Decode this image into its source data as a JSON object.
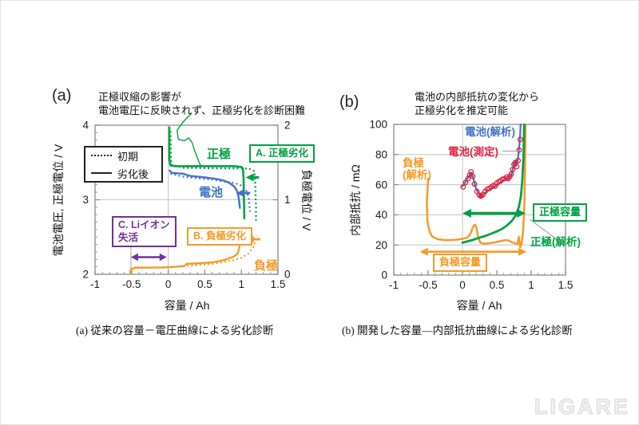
{
  "watermark": "LIGARE",
  "captions": {
    "a": "(a) 従来の容量－電圧曲線による劣化診断",
    "b": "(b) 開発した容量―内部抵抗曲線による劣化診断"
  },
  "colors": {
    "green": "#00a142",
    "blue": "#4472c4",
    "orange": "#f59a28",
    "purple": "#7030a0",
    "red": "#e0233c",
    "grid": "#c8c8c8",
    "frame": "#8c8c8c",
    "leader_gray": "#aaaaaa"
  },
  "chart_data": [
    {
      "id": "a",
      "type": "line",
      "corner_label": "(a)",
      "title_lines": [
        "正極収縮の影響が",
        "電池電圧に反映されず、正極劣化を診断困難"
      ],
      "xlabel": "容量 / Ah",
      "ylabel_left": "電池電圧, 正極電位 / V",
      "ylabel_right": "負極電位 / V",
      "xlim": [
        -1,
        1.5
      ],
      "ylim": [
        2,
        4
      ],
      "ylim_right": [
        0,
        2
      ],
      "xticks": [
        -1,
        -0.5,
        0,
        0.5,
        1,
        1.5
      ],
      "yticks": [
        2,
        3,
        4
      ],
      "yticks_right": [
        0,
        1,
        2
      ],
      "grid": {
        "x": [
          0
        ],
        "y": [
          3
        ]
      },
      "legend": [
        {
          "style": "dotted",
          "label": "初期"
        },
        {
          "style": "solid",
          "label": "劣化後"
        }
      ],
      "curve_labels": {
        "positive": "正極",
        "battery": "電池",
        "negative": "負極"
      },
      "boxes": {
        "a_label": "A. 正極劣化",
        "b_label": "B. 負極劣化",
        "c_line1": "C. Liイオン",
        "c_line2": "失活"
      },
      "series": [
        {
          "name": "正極(劣化後)",
          "color": "#00a142",
          "width": 2.6,
          "dash": "",
          "points": [
            [
              0.015,
              3.97
            ],
            [
              0.015,
              3.55
            ],
            [
              0.03,
              3.46
            ],
            [
              0.1,
              3.45
            ],
            [
              0.5,
              3.45
            ],
            [
              0.9,
              3.45
            ],
            [
              1.0,
              3.44
            ],
            [
              1.02,
              3.42
            ],
            [
              1.03,
              3.3
            ],
            [
              1.035,
              3.0
            ],
            [
              1.04,
              2.75
            ]
          ]
        },
        {
          "name": "正極(初期)",
          "color": "#00a142",
          "width": 2.3,
          "dash": "2 3.2",
          "points": [
            [
              0.03,
              3.92
            ],
            [
              0.04,
              3.47
            ],
            [
              0.2,
              3.43
            ],
            [
              0.7,
              3.42
            ],
            [
              1.05,
              3.42
            ],
            [
              1.14,
              3.41
            ],
            [
              1.18,
              3.38
            ],
            [
              1.19,
              3.2
            ],
            [
              1.2,
              2.9
            ],
            [
              1.2,
              2.72
            ]
          ]
        },
        {
          "name": "電池(劣化後)",
          "color": "#4472c4",
          "width": 2.4,
          "dash": "",
          "points": [
            [
              0.02,
              3.39
            ],
            [
              0.05,
              3.36
            ],
            [
              0.2,
              3.35
            ],
            [
              0.3,
              3.32
            ],
            [
              0.5,
              3.3
            ],
            [
              0.65,
              3.28
            ],
            [
              0.75,
              3.26
            ],
            [
              0.83,
              3.23
            ],
            [
              0.9,
              3.18
            ],
            [
              0.94,
              3.12
            ],
            [
              0.96,
              3.05
            ],
            [
              0.97,
              2.97
            ],
            [
              0.98,
              2.89
            ]
          ]
        },
        {
          "name": "電池(初期)",
          "color": "#4472c4",
          "width": 2.2,
          "dash": "2 3.2",
          "points": [
            [
              0.03,
              3.35
            ],
            [
              0.2,
              3.31
            ],
            [
              0.4,
              3.29
            ],
            [
              0.6,
              3.27
            ],
            [
              0.8,
              3.24
            ],
            [
              0.92,
              3.22
            ],
            [
              1.0,
              3.19
            ],
            [
              1.05,
              3.15
            ],
            [
              1.08,
              3.1
            ],
            [
              1.1,
              3.02
            ],
            [
              1.11,
              2.92
            ],
            [
              1.12,
              2.84
            ]
          ]
        },
        {
          "name": "負極(劣化後)",
          "color": "#f59a28",
          "width": 2.4,
          "dash": "",
          "points": [
            [
              -0.52,
              2.02
            ],
            [
              -0.51,
              2.07
            ],
            [
              -0.45,
              2.09
            ],
            [
              -0.1,
              2.09
            ],
            [
              0.1,
              2.1
            ],
            [
              0.22,
              2.11
            ],
            [
              0.25,
              2.14
            ],
            [
              0.45,
              2.15
            ],
            [
              0.6,
              2.16
            ],
            [
              0.72,
              2.18
            ],
            [
              0.82,
              2.21
            ],
            [
              0.9,
              2.24
            ],
            [
              0.95,
              2.28
            ],
            [
              0.97,
              2.35
            ],
            [
              0.985,
              2.45
            ],
            [
              0.99,
              2.52
            ]
          ]
        },
        {
          "name": "負極(初期)",
          "color": "#f59a28",
          "width": 2.2,
          "dash": "2 3.2",
          "points": [
            [
              -0.5,
              2.03
            ],
            [
              -0.48,
              2.08
            ],
            [
              -0.2,
              2.09
            ],
            [
              0.1,
              2.1
            ],
            [
              0.35,
              2.12
            ],
            [
              0.6,
              2.14
            ],
            [
              0.85,
              2.18
            ],
            [
              1.0,
              2.22
            ],
            [
              1.1,
              2.28
            ],
            [
              1.16,
              2.36
            ],
            [
              1.2,
              2.46
            ],
            [
              1.21,
              2.52
            ]
          ]
        }
      ],
      "leaders": [
        {
          "color": "#00a142",
          "width": 1.4,
          "clip": false,
          "points": [
            [
              0.32,
              4.16
            ],
            [
              0.2,
              4.04
            ],
            [
              0.12,
              3.93
            ],
            [
              0.14,
              3.81
            ],
            [
              0.22,
              3.79
            ],
            [
              0.28,
              3.83
            ],
            [
              0.33,
              3.76
            ],
            [
              0.36,
              3.66
            ],
            [
              0.41,
              3.53
            ],
            [
              0.45,
              3.44
            ]
          ]
        }
      ],
      "vlines": [
        {
          "x": -0.51,
          "y1": 2.0,
          "y2": 2.39,
          "color": "#b3b3b3",
          "width": 1.2
        }
      ],
      "arrows": [
        {
          "x1": -0.51,
          "x2": -0.02,
          "y": 2.23,
          "color": "#7030a0",
          "width": 2.4,
          "heads": "both",
          "hl": 9,
          "hw": 4.8
        },
        {
          "x1": 1.06,
          "x2": 1.24,
          "y": 3.3,
          "color": "#00a142",
          "width": 3.2,
          "heads": "start",
          "hl": 10,
          "hw": 5
        },
        {
          "x1": 0.93,
          "x2": 1.12,
          "y": 3.09,
          "color": "#4472c4",
          "width": 2.8,
          "heads": "start",
          "hl": 9,
          "hw": 4.5
        },
        {
          "x1": 1.07,
          "x2": 1.26,
          "y": 2.47,
          "color": "#f59a28",
          "width": 2.8,
          "heads": "start",
          "hl": 9,
          "hw": 4.5
        }
      ]
    },
    {
      "id": "b",
      "type": "line",
      "corner_label": "(b)",
      "title_lines": [
        "電池の内部抵抗の変化から",
        "正極劣化を推定可能"
      ],
      "xlabel": "容量 / Ah",
      "ylabel_left": "内部抵抗 / mΩ",
      "xlim": [
        -1,
        1.5
      ],
      "ylim": [
        0,
        100
      ],
      "xticks": [
        -1,
        -0.5,
        0,
        0.5,
        1,
        1.5
      ],
      "yticks": [
        0,
        20,
        40,
        60,
        80,
        100
      ],
      "grid": {
        "x": [
          0
        ],
        "y": [
          20,
          40,
          60,
          80
        ]
      },
      "curve_labels": {
        "battery_analysis": "電池(解析)",
        "battery_measured": "電池(測定)",
        "negative_l1": "負極",
        "negative_l2": "(解析)",
        "positive_analysis": "正極(解析)"
      },
      "boxes": {
        "positive_capacity": "正極容量",
        "negative_capacity": "負極容量"
      },
      "series": [
        {
          "name": "負極(解析)",
          "color": "#f59a28",
          "width": 2.5,
          "dash": "",
          "points": [
            [
              -0.5,
              64
            ],
            [
              -0.52,
              48
            ],
            [
              -0.51,
              36
            ],
            [
              -0.48,
              29
            ],
            [
              -0.44,
              25.5
            ],
            [
              -0.36,
              23.8
            ],
            [
              -0.25,
              23.2
            ],
            [
              -0.1,
              23.4
            ],
            [
              0,
              24
            ],
            [
              0.07,
              25
            ],
            [
              0.11,
              27
            ],
            [
              0.15,
              31.5
            ],
            [
              0.18,
              33.5
            ],
            [
              0.2,
              32
            ],
            [
              0.23,
              25
            ],
            [
              0.26,
              21.5
            ],
            [
              0.32,
              20.8
            ],
            [
              0.4,
              21.2
            ],
            [
              0.48,
              21.8
            ],
            [
              0.55,
              22.5
            ],
            [
              0.62,
              23.2
            ],
            [
              0.67,
              23
            ],
            [
              0.72,
              21.8
            ],
            [
              0.77,
              21
            ],
            [
              0.8,
              20.5
            ],
            [
              0.82,
              25.5
            ],
            [
              0.84,
              18.5
            ],
            [
              0.86,
              21
            ],
            [
              0.88,
              28
            ],
            [
              0.9,
              45
            ],
            [
              0.91,
              70
            ],
            [
              0.92,
              104
            ]
          ]
        },
        {
          "name": "正極(解析)",
          "color": "#00a142",
          "width": 2.8,
          "dash": "",
          "points": [
            [
              0,
              21.5
            ],
            [
              0.08,
              22.5
            ],
            [
              0.16,
              23.5
            ],
            [
              0.25,
              24.8
            ],
            [
              0.33,
              26
            ],
            [
              0.42,
              27.5
            ],
            [
              0.5,
              29
            ],
            [
              0.58,
              30.8
            ],
            [
              0.65,
              33
            ],
            [
              0.72,
              36
            ],
            [
              0.78,
              40
            ],
            [
              0.82,
              45
            ],
            [
              0.85,
              52
            ],
            [
              0.87,
              62
            ],
            [
              0.89,
              80
            ],
            [
              0.9,
              104
            ]
          ]
        },
        {
          "name": "電池(解析)",
          "color": "#4472c4",
          "width": 2.2,
          "dash": "",
          "points": [
            [
              0,
              59
            ],
            [
              0.04,
              61.5
            ],
            [
              0.08,
              64.5
            ],
            [
              0.11,
              67
            ],
            [
              0.13,
              68
            ],
            [
              0.16,
              64
            ],
            [
              0.19,
              58.5
            ],
            [
              0.23,
              54.5
            ],
            [
              0.27,
              53
            ],
            [
              0.31,
              53.8
            ],
            [
              0.36,
              55.5
            ],
            [
              0.42,
              57.5
            ],
            [
              0.48,
              59
            ],
            [
              0.54,
              61
            ],
            [
              0.6,
              63
            ],
            [
              0.63,
              64.5
            ],
            [
              0.66,
              63.5
            ],
            [
              0.69,
              65
            ],
            [
              0.72,
              67.5
            ],
            [
              0.74,
              72
            ],
            [
              0.76,
              76
            ],
            [
              0.78,
              72.5
            ],
            [
              0.8,
              75
            ],
            [
              0.82,
              82
            ],
            [
              0.84,
              93
            ],
            [
              0.85,
              104
            ]
          ]
        }
      ],
      "dots": {
        "name": "電池(測定)",
        "color": "#e0233c",
        "r": 2.8,
        "points": [
          [
            0.01,
            58.5
          ],
          [
            0.045,
            61.5
          ],
          [
            0.08,
            64
          ],
          [
            0.105,
            66.5
          ],
          [
            0.125,
            68.5
          ],
          [
            0.15,
            65.5
          ],
          [
            0.175,
            60.5
          ],
          [
            0.21,
            55.5
          ],
          [
            0.245,
            53
          ],
          [
            0.27,
            52.5
          ],
          [
            0.3,
            53.5
          ],
          [
            0.33,
            55.5
          ],
          [
            0.36,
            57
          ],
          [
            0.39,
            57.5
          ],
          [
            0.42,
            58.5
          ],
          [
            0.45,
            59.5
          ],
          [
            0.475,
            59
          ],
          [
            0.5,
            61
          ],
          [
            0.53,
            62
          ],
          [
            0.555,
            62.5
          ],
          [
            0.58,
            63.5
          ],
          [
            0.61,
            64
          ],
          [
            0.64,
            65
          ],
          [
            0.665,
            64
          ],
          [
            0.69,
            65.5
          ],
          [
            0.71,
            67
          ],
          [
            0.73,
            70
          ],
          [
            0.75,
            73.5
          ],
          [
            0.77,
            74.5
          ],
          [
            0.79,
            72
          ],
          [
            0.81,
            76
          ],
          [
            0.825,
            83
          ],
          [
            0.84,
            90
          ]
        ],
        "filled_marker": [
          0.27,
          52.5
        ]
      },
      "leaders": [
        {
          "color": "#aaaaaa",
          "width": 1.2,
          "clip": true,
          "points": [
            [
              0.58,
              82.3
            ],
            [
              0.82,
              82.3
            ]
          ]
        },
        {
          "color": "#aaaaaa",
          "width": 1.2,
          "clip": false,
          "points": [
            [
              1.44,
              21.5
            ],
            [
              0.98,
              37
            ]
          ]
        }
      ],
      "vlines": [],
      "arrows": [
        {
          "x1": 0.0,
          "x2": 0.92,
          "y": 41,
          "color": "#00a142",
          "width": 3.4,
          "heads": "both",
          "hl": 11,
          "hw": 5.5
        },
        {
          "x1": -0.62,
          "x2": 0.93,
          "y": 15.5,
          "color": "#f59a28",
          "width": 2.6,
          "heads": "both",
          "hl": 10,
          "hw": 5
        }
      ]
    }
  ]
}
